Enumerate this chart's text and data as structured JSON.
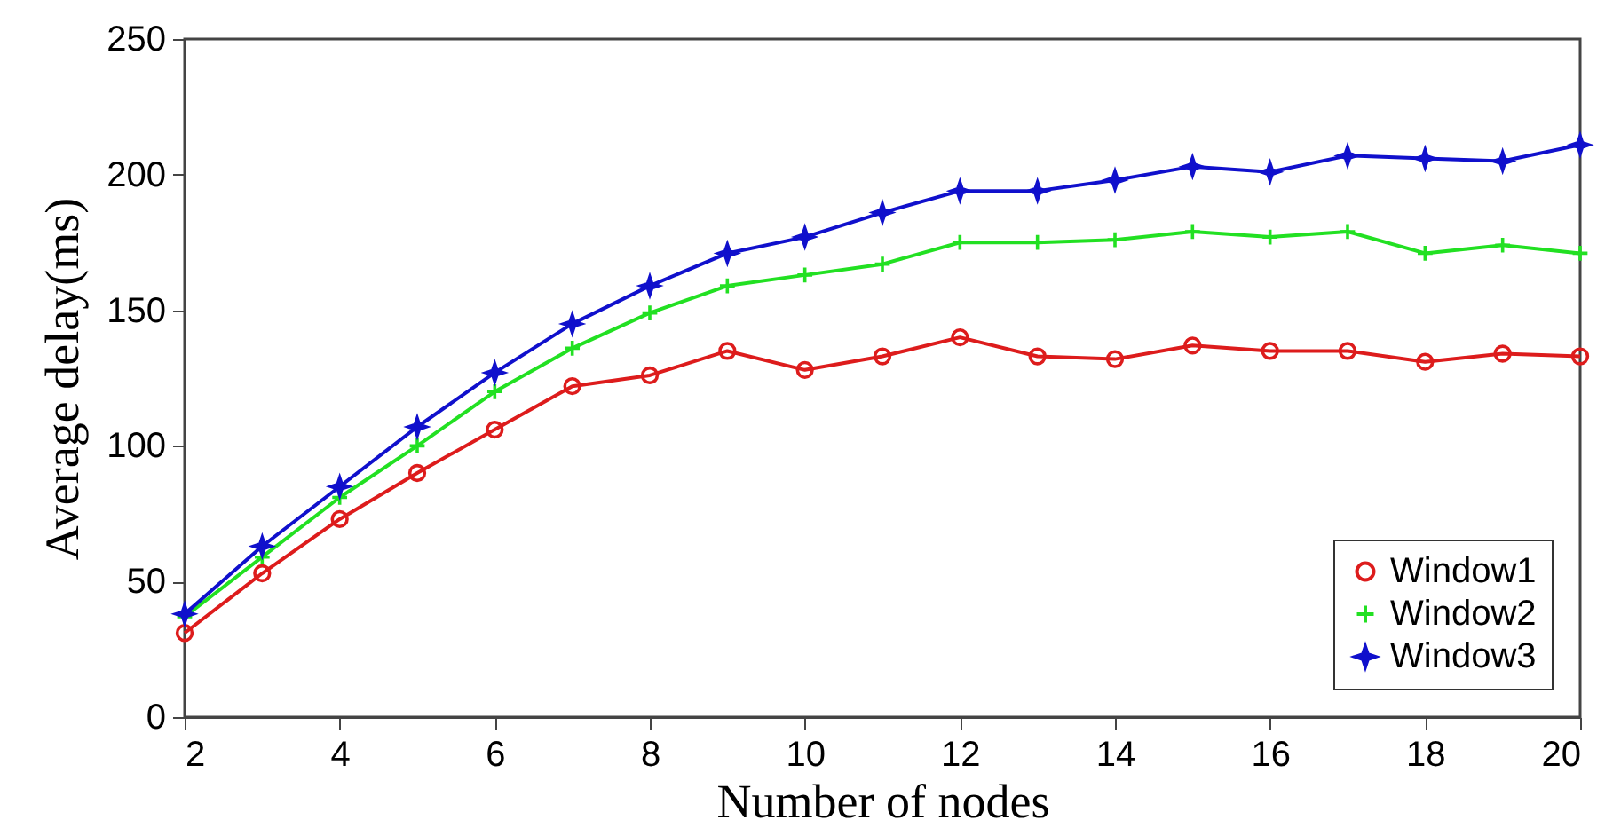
{
  "chart_data": {
    "type": "line",
    "xlabel": "Number of nodes",
    "ylabel": "Average delay(ms)",
    "x": [
      2,
      3,
      4,
      5,
      6,
      7,
      8,
      9,
      10,
      11,
      12,
      13,
      14,
      15,
      16,
      17,
      18,
      19,
      20
    ],
    "series": [
      {
        "name": "Window1",
        "color": "#dd1c1c",
        "marker": "circle",
        "values": [
          31,
          53,
          73,
          90,
          106,
          122,
          126,
          135,
          128,
          133,
          140,
          133,
          132,
          137,
          135,
          135,
          131,
          134,
          133
        ]
      },
      {
        "name": "Window2",
        "color": "#22e022",
        "marker": "cross",
        "values": [
          37,
          59,
          81,
          100,
          120,
          136,
          149,
          159,
          163,
          167,
          175,
          175,
          176,
          179,
          177,
          179,
          171,
          174,
          171
        ]
      },
      {
        "name": "Window3",
        "color": "#1010cc",
        "marker": "star",
        "values": [
          38,
          63,
          85,
          107,
          127,
          145,
          159,
          171,
          177,
          186,
          194,
          194,
          198,
          203,
          201,
          207,
          206,
          205,
          211
        ]
      }
    ],
    "xlim": [
      2,
      20
    ],
    "xticks": [
      2,
      4,
      6,
      8,
      10,
      12,
      14,
      16,
      18,
      20
    ],
    "ylim": [
      0,
      250
    ],
    "yticks": [
      0,
      50,
      100,
      150,
      200,
      250
    ],
    "grid": false,
    "legend": "bottom right",
    "line_style": "solid"
  }
}
